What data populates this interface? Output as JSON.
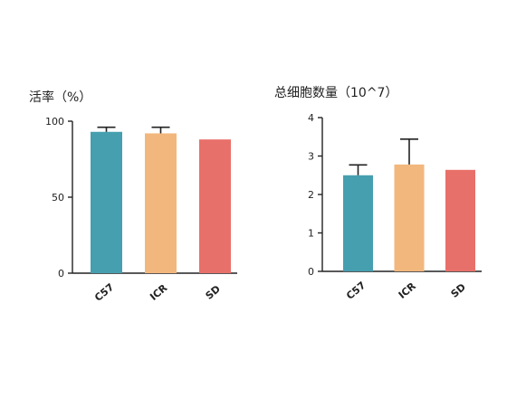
{
  "chart_data": [
    {
      "type": "bar",
      "title": "活率（%）",
      "categories": [
        "C57",
        "ICR",
        "SD"
      ],
      "values": [
        93,
        92,
        88
      ],
      "error_upper": [
        96,
        96,
        null
      ],
      "ylim": [
        0,
        100
      ],
      "yticks": [
        "0",
        "50",
        "100"
      ],
      "xlabel": "",
      "ylabel": "",
      "grid": false,
      "colors": [
        "#459faf",
        "#f2b77c",
        "#e8706a"
      ]
    },
    {
      "type": "bar",
      "title": "总细胞数量（10^7）",
      "categories": [
        "C57",
        "ICR",
        "SD"
      ],
      "values": [
        2.5,
        2.78,
        2.64
      ],
      "error_upper": [
        2.77,
        3.44,
        null
      ],
      "ylim": [
        0,
        4
      ],
      "yticks": [
        "0",
        "1",
        "2",
        "3",
        "4"
      ],
      "xlabel": "",
      "ylabel": "",
      "grid": false,
      "colors": [
        "#459faf",
        "#f2b77c",
        "#e8706a"
      ]
    }
  ]
}
